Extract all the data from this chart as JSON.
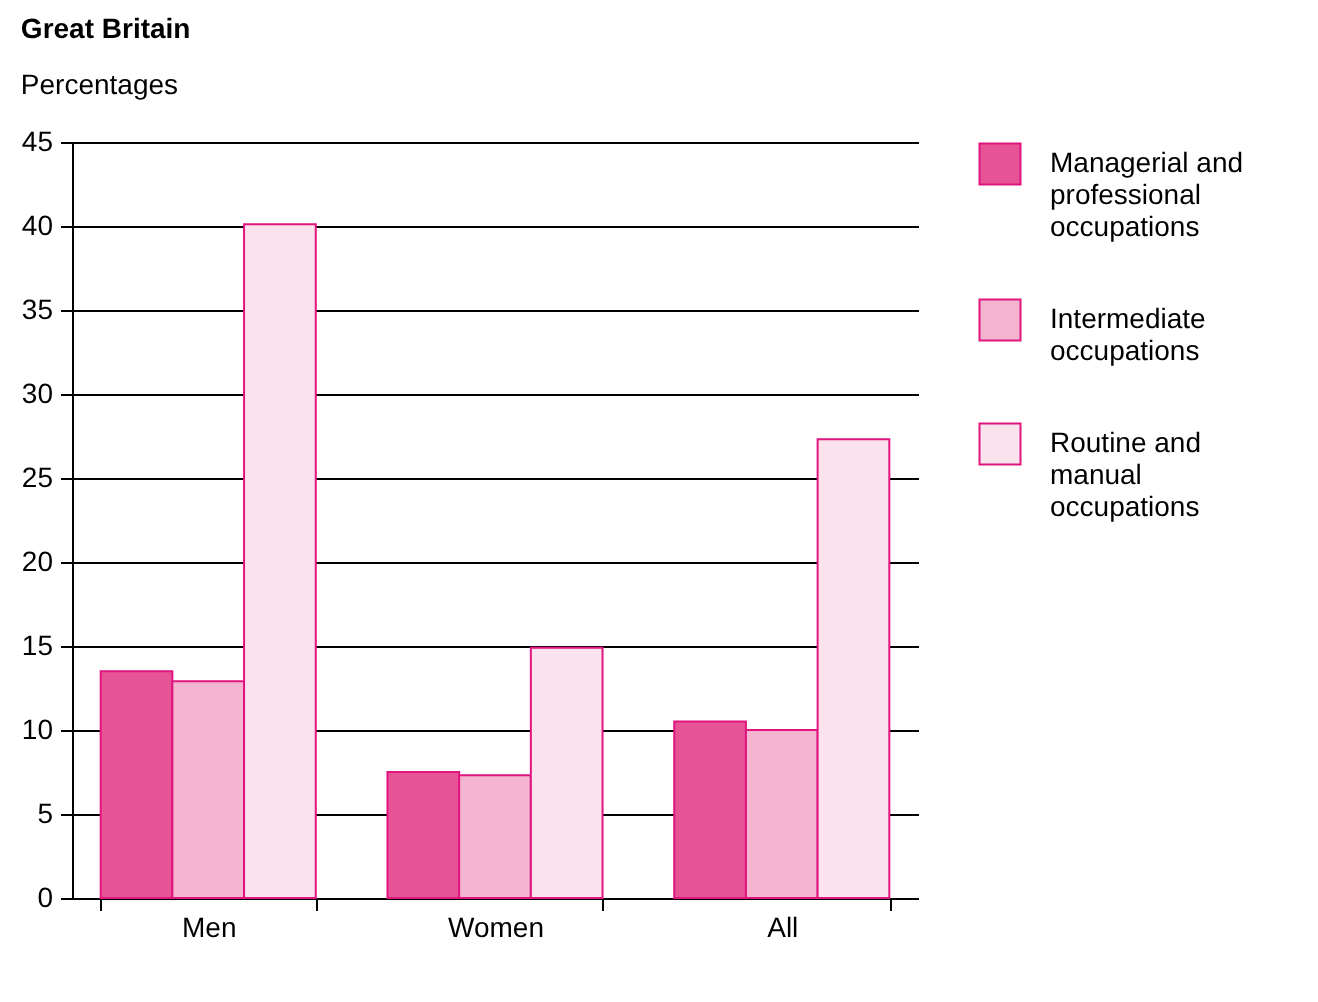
{
  "chart_data": {
    "type": "bar",
    "title": "Great Britain",
    "subtitle": "Percentages",
    "categories": [
      "Men",
      "Women",
      "All"
    ],
    "series": [
      {
        "name": "Managerial and professional occupations",
        "color": "#e75496",
        "values": [
          13.5,
          7.5,
          10.5
        ]
      },
      {
        "name": "Intermediate occupations",
        "color": "#f3b5cf",
        "values": [
          12.9,
          7.3,
          10.0
        ]
      },
      {
        "name": "Routine and manual occupations",
        "color": "#fbe3ee",
        "values": [
          40.1,
          14.9,
          27.3
        ]
      }
    ],
    "ylim": [
      0,
      45
    ],
    "yticks": [
      0,
      5,
      10,
      15,
      20,
      25,
      30,
      35,
      40,
      45
    ],
    "grid": "y",
    "legend": "right"
  }
}
